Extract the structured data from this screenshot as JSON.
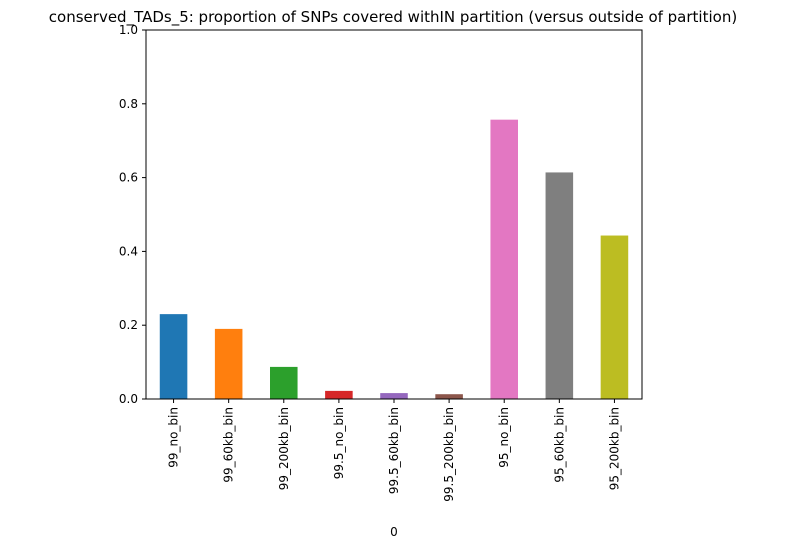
{
  "chart_data": {
    "type": "bar",
    "title": "conserved_TADs_5: proportion of SNPs covered withIN partition (versus outside of partition)",
    "xlabel": "0",
    "ylabel": "",
    "ylim": [
      0,
      1.0
    ],
    "yticks": [
      0.0,
      0.2,
      0.4,
      0.6,
      0.8,
      1.0
    ],
    "ytick_labels": [
      "0.0",
      "0.2",
      "0.4",
      "0.6",
      "0.8",
      "1.0"
    ],
    "grid": false,
    "categories": [
      "99_no_bin",
      "99_60kb_bin",
      "99_200kb_bin",
      "99.5_no_bin",
      "99.5_60kb_bin",
      "99.5_200kb_bin",
      "95_no_bin",
      "95_60kb_bin",
      "95_200kb_bin"
    ],
    "values": [
      0.23,
      0.19,
      0.087,
      0.022,
      0.016,
      0.013,
      0.757,
      0.614,
      0.443
    ],
    "colors": [
      "#1f77b4",
      "#ff7f0e",
      "#2ca02c",
      "#d62728",
      "#9467bd",
      "#8c564b",
      "#e377c2",
      "#7f7f7f",
      "#bcbd22"
    ]
  }
}
